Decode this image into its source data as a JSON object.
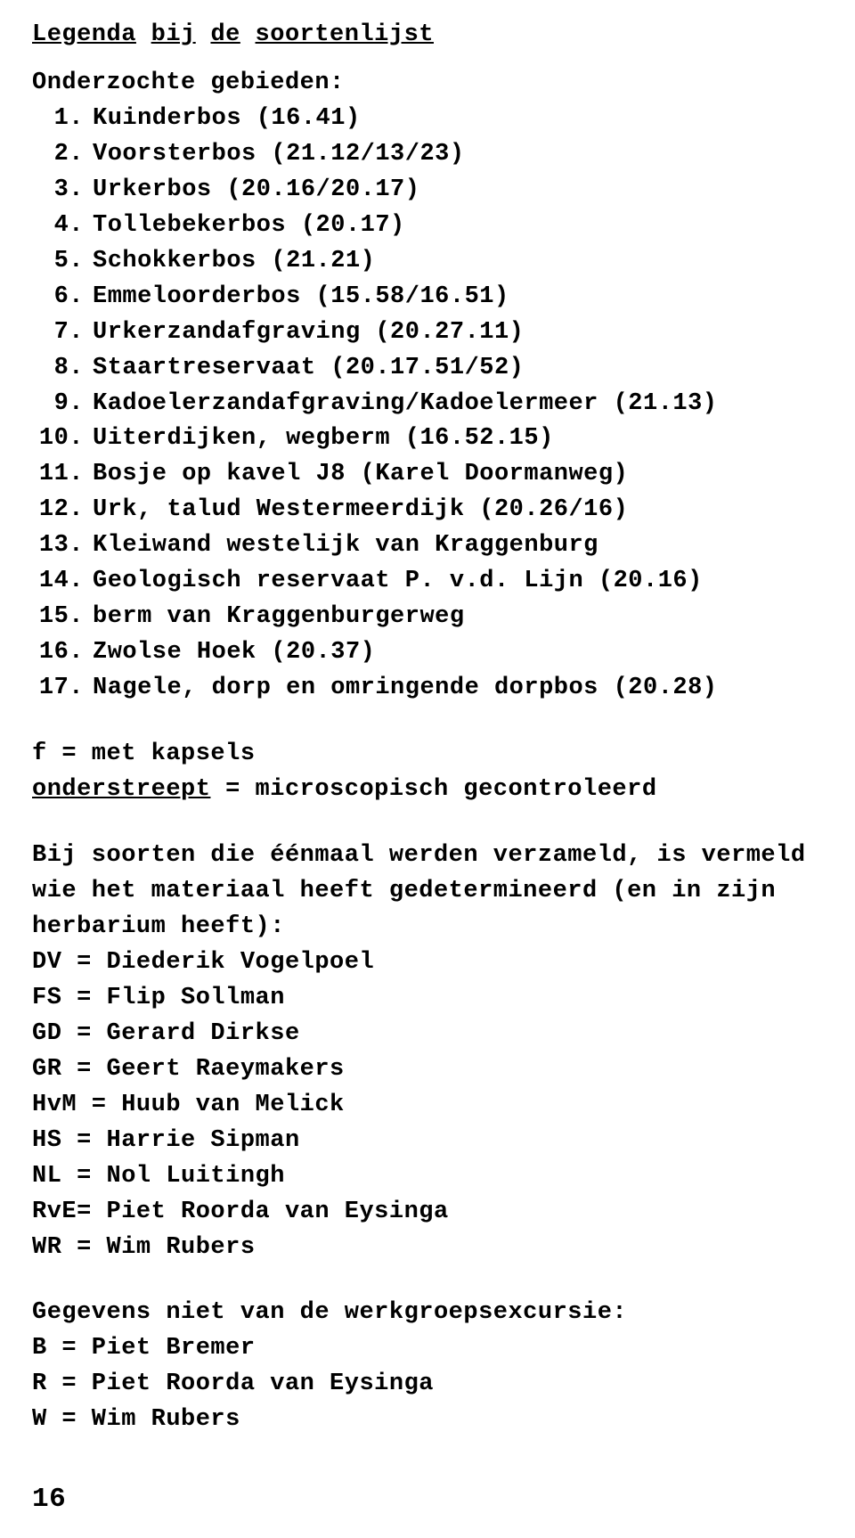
{
  "title_words": [
    "Legenda",
    "bij",
    "de",
    "soortenlijst"
  ],
  "subheading": "Onderzochte gebieden:",
  "areas": [
    {
      "n": "1.",
      "t": "Kuinderbos (16.41)"
    },
    {
      "n": "2.",
      "t": "Voorsterbos (21.12/13/23)"
    },
    {
      "n": "3.",
      "t": "Urkerbos (20.16/20.17)"
    },
    {
      "n": "4.",
      "t": "Tollebekerbos (20.17)"
    },
    {
      "n": "5.",
      "t": "Schokkerbos (21.21)"
    },
    {
      "n": "6.",
      "t": "Emmeloorderbos (15.58/16.51)"
    },
    {
      "n": "7.",
      "t": "Urkerzandafgraving (20.27.11)"
    },
    {
      "n": "8.",
      "t": "Staartreservaat (20.17.51/52)"
    },
    {
      "n": "9.",
      "t": "Kadoelerzandafgraving/Kadoelermeer (21.13)"
    },
    {
      "n": "10.",
      "t": "Uiterdijken, wegberm (16.52.15)"
    },
    {
      "n": "11.",
      "t": "Bosje op kavel J8 (Karel Doormanweg)"
    },
    {
      "n": "12.",
      "t": "Urk, talud Westermeerdijk (20.26/16)"
    },
    {
      "n": "13.",
      "t": "Kleiwand westelijk van Kraggenburg"
    },
    {
      "n": "14.",
      "t": "Geologisch reservaat P. v.d. Lijn (20.16)"
    },
    {
      "n": "15.",
      "t": "berm van Kraggenburgerweg"
    },
    {
      "n": "16.",
      "t": "Zwolse Hoek (20.37)"
    },
    {
      "n": "17.",
      "t": "Nagele, dorp en omringende dorpbos (20.28)"
    }
  ],
  "legend": {
    "line1": "f = met kapsels",
    "line2_underlined": "onderstreept",
    "line2_rest": " = microscopisch gecontroleerd"
  },
  "para": {
    "l1": "Bij soorten die éénmaal werden verzameld, is vermeld",
    "l2": "wie het materiaal heeft gedetermineerd (en in zijn",
    "l3": "herbarium heeft):"
  },
  "codes": [
    "DV = Diederik Vogelpoel",
    "FS = Flip Sollman",
    "GD = Gerard Dirkse",
    "GR = Geert Raeymakers",
    "HvM = Huub van Melick",
    "HS = Harrie Sipman",
    "NL = Nol Luitingh",
    "RvE= Piet Roorda van Eysinga",
    "WR = Wim Rubers"
  ],
  "source_heading": "Gegevens niet van de werkgroepsexcursie:",
  "source_codes": [
    "B = Piet Bremer",
    "R = Piet Roorda van Eysinga",
    "W = Wim Rubers"
  ],
  "page_number": "16"
}
